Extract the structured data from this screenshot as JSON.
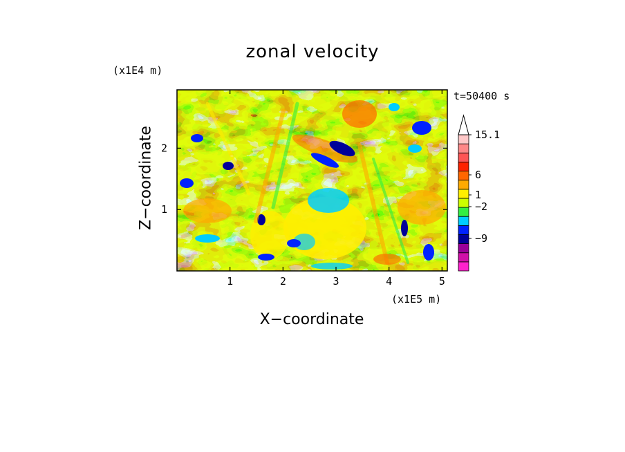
{
  "chart_data": {
    "type": "heatmap",
    "title": "zonal velocity",
    "xlabel": "X−coordinate",
    "ylabel": "Z−coordinate",
    "x_unit": "(x1E5 m)",
    "y_unit": "(x1E4 m)",
    "time_label": "t=50400 s",
    "xlim": [
      0,
      5.1
    ],
    "ylim": [
      0,
      2.95
    ],
    "x_ticks": [
      "1",
      "2",
      "3",
      "4",
      "5"
    ],
    "y_ticks": [
      "1",
      "2"
    ],
    "colorbar": {
      "labels": [
        "15.1",
        "6",
        "1",
        "−2",
        "−9"
      ],
      "colors": [
        "#ff22cc",
        "#d010a8",
        "#9a0099",
        "#000099",
        "#0022ff",
        "#00ccff",
        "#33ee44",
        "#ccff00",
        "#ffee00",
        "#ffaa00",
        "#ff6600",
        "#ff2200",
        "#ff5555",
        "#ff8888",
        "#ffc8c8"
      ],
      "extend": "max"
    }
  }
}
